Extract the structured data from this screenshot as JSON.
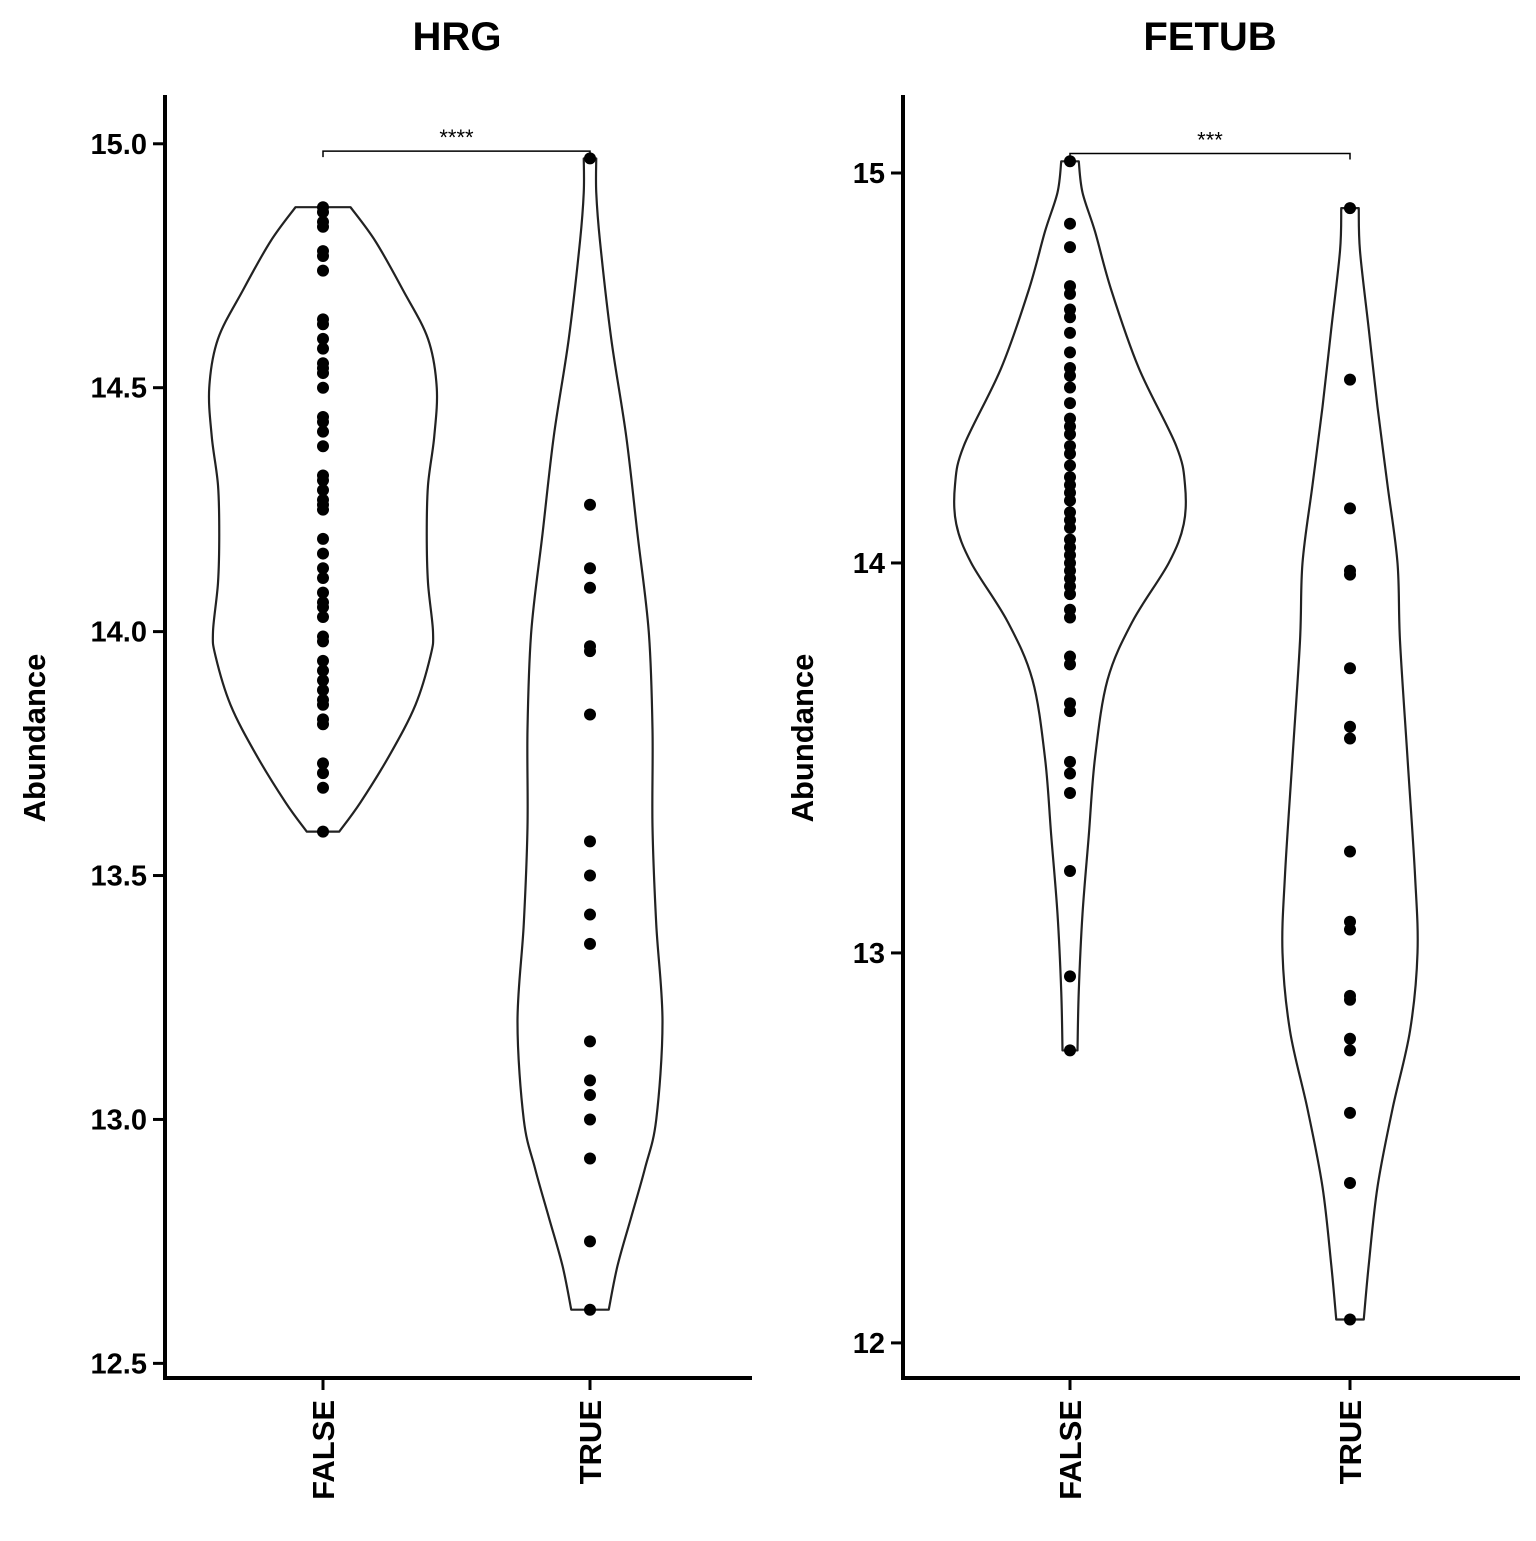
{
  "chart_data": [
    {
      "type": "violin",
      "title": "HRG",
      "ylabel": "Abundance",
      "xlabel": "",
      "ylim": [
        12.47,
        15.1
      ],
      "yticks": [
        12.5,
        13.0,
        13.5,
        14.0,
        14.5,
        15.0
      ],
      "ytick_labels": [
        "12.5",
        "13.0",
        "13.5",
        "14.0",
        "14.5",
        "15.0"
      ],
      "categories": [
        "FALSE",
        "TRUE"
      ],
      "groups": [
        {
          "category": "FALSE",
          "points": [
            14.87,
            14.86,
            14.84,
            14.83,
            14.78,
            14.77,
            14.74,
            14.64,
            14.63,
            14.6,
            14.58,
            14.55,
            14.54,
            14.53,
            14.5,
            14.44,
            14.43,
            14.41,
            14.38,
            14.32,
            14.31,
            14.29,
            14.27,
            14.26,
            14.25,
            14.19,
            14.16,
            14.13,
            14.11,
            14.08,
            14.06,
            14.05,
            14.03,
            13.99,
            13.98,
            13.94,
            13.92,
            13.9,
            13.88,
            13.86,
            13.85,
            13.82,
            13.81,
            13.73,
            13.71,
            13.68,
            13.59
          ],
          "density": [
            [
              13.59,
              0.13
            ],
            [
              13.65,
              0.3
            ],
            [
              13.75,
              0.54
            ],
            [
              13.85,
              0.74
            ],
            [
              13.95,
              0.86
            ],
            [
              14.0,
              0.88
            ],
            [
              14.1,
              0.84
            ],
            [
              14.2,
              0.83
            ],
            [
              14.3,
              0.84
            ],
            [
              14.4,
              0.89
            ],
            [
              14.5,
              0.91
            ],
            [
              14.6,
              0.84
            ],
            [
              14.7,
              0.64
            ],
            [
              14.8,
              0.42
            ],
            [
              14.87,
              0.22
            ]
          ]
        },
        {
          "category": "TRUE",
          "points": [
            14.97,
            14.26,
            14.13,
            14.09,
            13.97,
            13.96,
            13.83,
            13.57,
            13.5,
            13.42,
            13.36,
            13.16,
            13.08,
            13.05,
            13.0,
            12.92,
            12.75,
            12.61
          ],
          "density": [
            [
              12.61,
              0.15
            ],
            [
              12.7,
              0.22
            ],
            [
              12.8,
              0.33
            ],
            [
              12.9,
              0.44
            ],
            [
              13.0,
              0.53
            ],
            [
              13.2,
              0.58
            ],
            [
              13.4,
              0.53
            ],
            [
              13.6,
              0.5
            ],
            [
              13.8,
              0.5
            ],
            [
              14.0,
              0.47
            ],
            [
              14.2,
              0.38
            ],
            [
              14.4,
              0.29
            ],
            [
              14.6,
              0.17
            ],
            [
              14.8,
              0.08
            ],
            [
              14.9,
              0.05
            ],
            [
              14.97,
              0.05
            ]
          ]
        }
      ],
      "annotations": [
        {
          "text": "****",
          "between": [
            "FALSE",
            "TRUE"
          ],
          "y": 14.985
        }
      ]
    },
    {
      "type": "violin",
      "title": "FETUB",
      "ylabel": "Abundance",
      "xlabel": "",
      "ylim": [
        11.91,
        15.2
      ],
      "yticks": [
        12,
        13,
        14,
        15
      ],
      "ytick_labels": [
        "12",
        "13",
        "14",
        "15"
      ],
      "categories": [
        "FALSE",
        "TRUE"
      ],
      "groups": [
        {
          "category": "FALSE",
          "points": [
            15.03,
            14.87,
            14.81,
            14.71,
            14.69,
            14.65,
            14.63,
            14.59,
            14.54,
            14.5,
            14.48,
            14.45,
            14.41,
            14.37,
            14.35,
            14.33,
            14.3,
            14.28,
            14.25,
            14.22,
            14.2,
            14.18,
            14.16,
            14.13,
            14.11,
            14.09,
            14.06,
            14.04,
            14.02,
            14.0,
            13.98,
            13.96,
            13.94,
            13.92,
            13.88,
            13.86,
            13.76,
            13.74,
            13.64,
            13.62,
            13.49,
            13.46,
            13.41,
            13.21,
            12.94,
            12.75
          ],
          "density": [
            [
              12.75,
              0.06
            ],
            [
              12.9,
              0.07
            ],
            [
              13.1,
              0.1
            ],
            [
              13.3,
              0.15
            ],
            [
              13.5,
              0.2
            ],
            [
              13.7,
              0.3
            ],
            [
              13.85,
              0.5
            ],
            [
              14.0,
              0.79
            ],
            [
              14.1,
              0.91
            ],
            [
              14.2,
              0.92
            ],
            [
              14.3,
              0.85
            ],
            [
              14.5,
              0.55
            ],
            [
              14.7,
              0.33
            ],
            [
              14.85,
              0.2
            ],
            [
              14.95,
              0.1
            ],
            [
              15.03,
              0.07
            ]
          ]
        },
        {
          "category": "TRUE",
          "points": [
            14.91,
            14.47,
            14.14,
            13.98,
            13.97,
            13.73,
            13.58,
            13.55,
            13.26,
            13.08,
            13.06,
            12.89,
            12.88,
            12.78,
            12.75,
            12.59,
            12.41,
            12.06
          ],
          "density": [
            [
              12.06,
              0.11
            ],
            [
              12.2,
              0.15
            ],
            [
              12.4,
              0.22
            ],
            [
              12.6,
              0.34
            ],
            [
              12.8,
              0.48
            ],
            [
              13.0,
              0.54
            ],
            [
              13.2,
              0.52
            ],
            [
              13.5,
              0.46
            ],
            [
              13.8,
              0.4
            ],
            [
              14.0,
              0.38
            ],
            [
              14.2,
              0.3
            ],
            [
              14.4,
              0.22
            ],
            [
              14.6,
              0.15
            ],
            [
              14.8,
              0.08
            ],
            [
              14.91,
              0.07
            ]
          ]
        }
      ],
      "annotations": [
        {
          "text": "***",
          "between": [
            "FALSE",
            "TRUE"
          ],
          "y": 15.05
        }
      ]
    }
  ]
}
